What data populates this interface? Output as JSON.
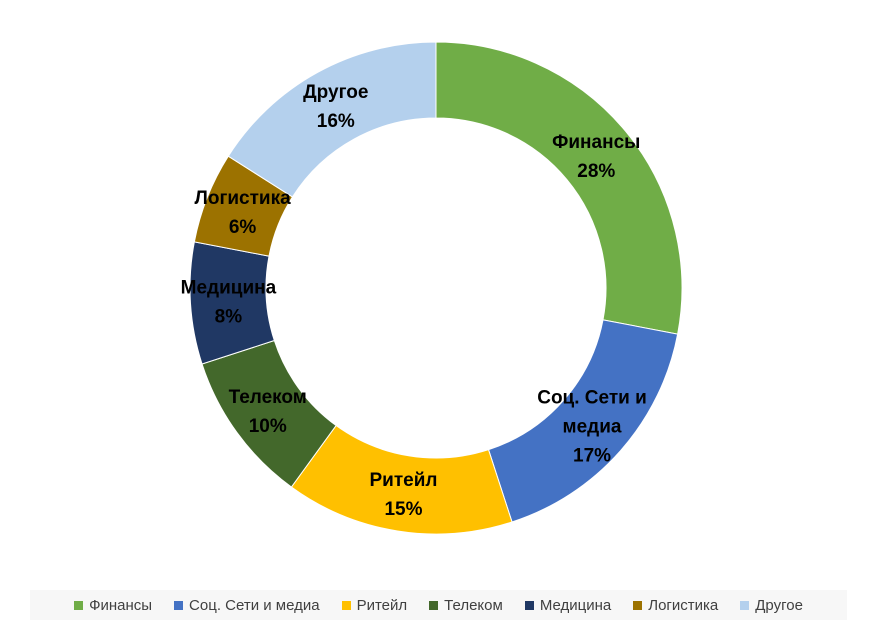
{
  "chart_data": {
    "type": "pie",
    "variant": "donut",
    "legend_position": "bottom",
    "slices": [
      {
        "name": "Финансы",
        "label_lines": [
          "Финансы"
        ],
        "value": 28,
        "value_label": "28%",
        "color": "#70ad47"
      },
      {
        "name": "Соц. Сети и медиа",
        "label_lines": [
          "Соц. Сети и",
          "медиа"
        ],
        "value": 17,
        "value_label": "17%",
        "color": "#4472c4"
      },
      {
        "name": "Ритейл",
        "label_lines": [
          "Ритейл"
        ],
        "value": 15,
        "value_label": "15%",
        "color": "#ffc000"
      },
      {
        "name": "Телеком",
        "label_lines": [
          "Телеком"
        ],
        "value": 10,
        "value_label": "10%",
        "color": "#43682b"
      },
      {
        "name": "Медицина",
        "label_lines": [
          "Медицина"
        ],
        "value": 8,
        "value_label": "8%",
        "color": "#203864"
      },
      {
        "name": "Логистика",
        "label_lines": [
          "Логистика"
        ],
        "value": 6,
        "value_label": "6%",
        "color": "#9c7200"
      },
      {
        "name": "Другое",
        "label_lines": [
          "Другое"
        ],
        "value": 16,
        "value_label": "16%",
        "color": "#b4d0ed"
      }
    ]
  }
}
